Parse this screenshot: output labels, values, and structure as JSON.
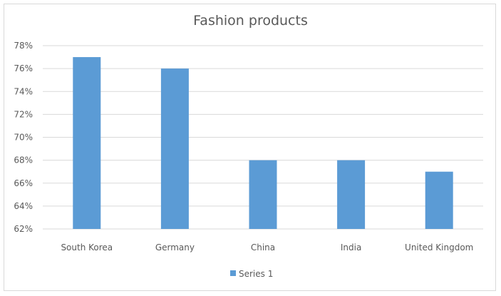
{
  "chart_data": {
    "type": "bar",
    "title": "Fashion products",
    "categories": [
      "South Korea",
      "Germany",
      "China",
      "India",
      "United Kingdom"
    ],
    "series": [
      {
        "name": "Series 1",
        "values": [
          77,
          76,
          68,
          68,
          67
        ],
        "color": "#5b9bd5"
      }
    ],
    "ylim": [
      62,
      78
    ],
    "y_ticks": [
      "62%",
      "64%",
      "66%",
      "68%",
      "70%",
      "72%",
      "74%",
      "76%",
      "78%"
    ],
    "ytick_values": [
      62,
      64,
      66,
      68,
      70,
      72,
      74,
      76,
      78
    ],
    "grid": true,
    "legend_position": "bottom",
    "colors": {
      "bar": "#5b9bd5",
      "grid": "#d9d9d9",
      "text": "#595959"
    }
  }
}
